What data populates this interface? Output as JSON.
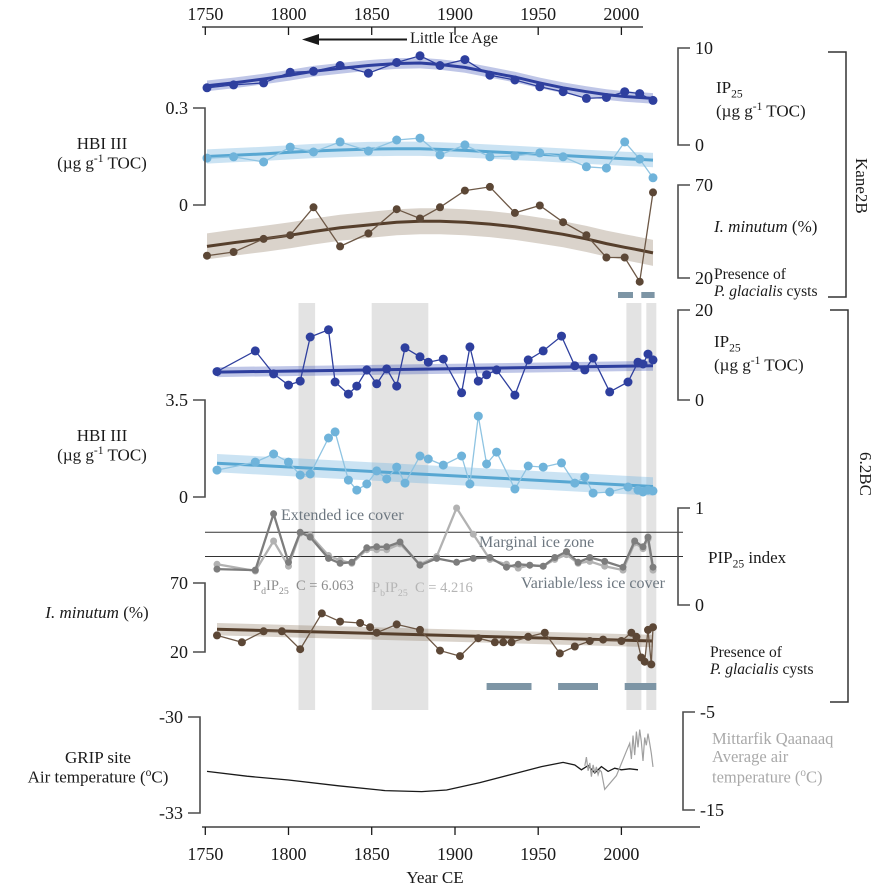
{
  "site_labels": {
    "kane2b": "Kane2B",
    "bc62": "6.2BC"
  },
  "labels": {
    "hbi3": "HBI III",
    "unit_toc": {
      "pre": "(µg g",
      "sup": "-1",
      "post": " TOC)"
    },
    "ip25": {
      "base": "IP",
      "sub": "25"
    },
    "pip25": {
      "base": "PIP",
      "sub": "25",
      "rest": " index"
    },
    "iminutum": {
      "it": "I. minutum",
      "rest": " (%)"
    },
    "presence": {
      "line1": "Presence of",
      "it": "P. glacialis",
      "rest": " cysts"
    },
    "grip": {
      "line1": "GRIP site",
      "line2_pre": "Air temperature (",
      "sup": "o",
      "post": "C)"
    },
    "mittarfik": {
      "line1": "Mittarfik Qaanaaq",
      "line2": "Average air",
      "line3_pre": "temperature (",
      "sup": "o",
      "post": "C)"
    },
    "little_ice_age": "Little Ice Age",
    "year_ce": "Year CE",
    "zone_extended": "Extended ice cover",
    "zone_marginal": "Marginal ice zone",
    "zone_variable": "Variable/less ice cover",
    "pd_legend": {
      "p": "P",
      "sub1": "d",
      "ip": "IP",
      "sub2": "25",
      "c": "C = 6.063"
    },
    "pb_legend": {
      "p": "P",
      "sub1": "b",
      "ip": "IP",
      "sub2": "25",
      "c": "C = 4.216"
    }
  },
  "axes": {
    "k_ip25": {
      "max": "10",
      "min": "0"
    },
    "k_hbi": {
      "max": "0.3",
      "min": "0"
    },
    "k_imin": {
      "max": "70",
      "min": "20"
    },
    "b_ip25": {
      "max": "20",
      "min": "0"
    },
    "b_hbi": {
      "max": "3.5",
      "min": "0"
    },
    "pip": {
      "max": "1",
      "min": "0"
    },
    "b_imin": {
      "max": "70",
      "min": "20"
    },
    "grip": {
      "max": "-30",
      "min": "-33"
    },
    "mq": {
      "max": "-5",
      "min": "-15"
    }
  },
  "top_axis": {
    "ticks": [
      "1750",
      "1800",
      "1850",
      "1900",
      "1950",
      "2000"
    ]
  },
  "bottom_axis": {
    "ticks": [
      "1750",
      "1800",
      "1850",
      "1900",
      "1950",
      "2000"
    ]
  },
  "colors": {
    "dark_blue": "#2e3f9e",
    "dark_blue_band": "rgba(62,83,183,0.33)",
    "light_blue": "#6fb3da",
    "light_blue_trend": "#58a7d2",
    "light_blue_band": "rgba(125,185,225,0.40)",
    "brown": "#5c4736",
    "brown_trend": "#563f2c",
    "brown_band": "rgba(140,117,94,0.32)",
    "pd_gray": "#7d7d7d",
    "pb_gray": "#b2b2b2",
    "black_line": "#1a1a1a",
    "mq_gray": "#a0a0a0",
    "highlight_band": "#e3e3e3",
    "presence_bar": "#7d95a5"
  },
  "highlight_bands_years": [
    [
      1806,
      1816
    ],
    [
      1850,
      1884
    ],
    [
      2003,
      2012
    ],
    [
      2015,
      2021
    ]
  ],
  "presence_bars": {
    "kane2b": [
      [
        1998,
        2007
      ],
      [
        2012,
        2020
      ]
    ],
    "bc62": [
      [
        1919,
        1946
      ],
      [
        1962,
        1986
      ],
      [
        2002,
        2021
      ]
    ]
  },
  "chart_data": [
    {
      "id": "kane2b_ip25",
      "type": "line",
      "site": "Kane2B",
      "name": "IP25 (µg g-1 TOC)",
      "ylim": [
        0,
        10
      ],
      "axis_side": "right",
      "years": [
        1751,
        1767,
        1785,
        1801,
        1815,
        1831,
        1848,
        1865,
        1879,
        1891,
        1906,
        1921,
        1936,
        1951,
        1965,
        1979,
        1991,
        2002,
        2011,
        2019
      ],
      "values": [
        5.9,
        6.2,
        6.4,
        7.5,
        7.6,
        8.2,
        7.4,
        8.5,
        9.2,
        8.2,
        8.8,
        7.2,
        6.7,
        6.0,
        5.5,
        4.8,
        4.9,
        5.5,
        5.3,
        4.6
      ],
      "trend": {
        "years": [
          1751,
          1767,
          1785,
          1801,
          1815,
          1831,
          1848,
          1865,
          1879,
          1891,
          1906,
          1921,
          1936,
          1951,
          1965,
          1979,
          1991,
          2002,
          2011,
          2019
        ],
        "values": [
          6.1,
          6.4,
          6.8,
          7.2,
          7.6,
          7.9,
          8.2,
          8.4,
          8.45,
          8.3,
          8.0,
          7.5,
          7.0,
          6.4,
          5.9,
          5.5,
          5.2,
          5.0,
          4.9,
          4.8
        ]
      },
      "band_halfwidth": 0.55
    },
    {
      "id": "kane2b_hbi3",
      "type": "line",
      "site": "Kane2B",
      "name": "HBI III (µg g-1 TOC)",
      "ylim": [
        0,
        0.3
      ],
      "axis_side": "left",
      "years": [
        1751,
        1767,
        1785,
        1801,
        1815,
        1831,
        1848,
        1865,
        1879,
        1891,
        1906,
        1921,
        1936,
        1951,
        1965,
        1979,
        1991,
        2002,
        2011,
        2019
      ],
      "values": [
        0.145,
        0.149,
        0.133,
        0.179,
        0.164,
        0.195,
        0.167,
        0.201,
        0.207,
        0.155,
        0.186,
        0.149,
        0.152,
        0.161,
        0.149,
        0.118,
        0.114,
        0.195,
        0.142,
        0.084
      ],
      "trend": {
        "years": [
          1751,
          1767,
          1785,
          1801,
          1815,
          1831,
          1848,
          1865,
          1879,
          1891,
          1906,
          1921,
          1936,
          1951,
          1965,
          1979,
          1991,
          2002,
          2011,
          2019
        ],
        "values": [
          0.15,
          0.154,
          0.158,
          0.163,
          0.167,
          0.17,
          0.173,
          0.174,
          0.174,
          0.172,
          0.169,
          0.165,
          0.161,
          0.157,
          0.153,
          0.149,
          0.146,
          0.143,
          0.141,
          0.139
        ]
      },
      "band_halfwidth": 0.022
    },
    {
      "id": "kane2b_iminutum",
      "type": "line",
      "site": "Kane2B",
      "name": "I. minutum (%)",
      "ylim": [
        20,
        70
      ],
      "axis_side": "right",
      "years": [
        1751,
        1767,
        1785,
        1801,
        1815,
        1831,
        1848,
        1865,
        1879,
        1891,
        1906,
        1921,
        1936,
        1951,
        1965,
        1979,
        1991,
        2002,
        2011,
        2019
      ],
      "values": [
        32,
        34,
        41,
        43,
        58,
        37,
        44,
        57,
        52,
        58,
        67,
        69,
        55,
        59,
        50,
        43,
        31,
        31,
        18,
        66
      ],
      "trend": {
        "years": [
          1751,
          1767,
          1785,
          1801,
          1815,
          1831,
          1848,
          1865,
          1879,
          1891,
          1906,
          1921,
          1936,
          1951,
          1965,
          1979,
          1991,
          2002,
          2011,
          2019
        ],
        "values": [
          37,
          39,
          41,
          43,
          45,
          47,
          48.5,
          50,
          50.5,
          50.5,
          50,
          49,
          47.5,
          45.5,
          43.5,
          41,
          38.5,
          36.5,
          35,
          33.5
        ]
      },
      "band_halfwidth": 7
    },
    {
      "id": "bc62_ip25",
      "type": "line",
      "site": "6.2BC",
      "name": "IP25 (µg g-1 TOC)",
      "ylim": [
        0,
        20
      ],
      "axis_side": "right",
      "years": [
        1757,
        1780,
        1791,
        1800,
        1807,
        1813,
        1824,
        1828,
        1836,
        1841,
        1847,
        1853,
        1859,
        1865,
        1870,
        1879,
        1884,
        1893,
        1904,
        1909,
        1914,
        1919,
        1925,
        1936,
        1944,
        1953,
        1964,
        1972,
        1978,
        1983,
        1993,
        2004,
        2010,
        2013,
        2016,
        2019
      ],
      "values": [
        6.3,
        10.9,
        5.8,
        3.3,
        4.2,
        14.0,
        15.6,
        4.0,
        1.3,
        3.1,
        6.7,
        3.6,
        6.9,
        3.1,
        11.6,
        9.6,
        8.4,
        9.1,
        1.6,
        11.8,
        4.2,
        5.6,
        6.7,
        1.1,
        8.9,
        10.9,
        14.2,
        7.6,
        6.7,
        9.3,
        1.8,
        4.0,
        8.4,
        8.0,
        10.2,
        8.9
      ],
      "trend": {
        "years": [
          1757,
          2019
        ],
        "values": [
          6.2,
          7.6
        ]
      },
      "band_halfwidth": 1.1
    },
    {
      "id": "bc62_hbi3",
      "type": "line",
      "site": "6.2BC",
      "name": "HBI III (µg g-1 TOC)",
      "ylim": [
        0,
        3.5
      ],
      "axis_side": "left",
      "years": [
        1757,
        1780,
        1791,
        1800,
        1807,
        1813,
        1824,
        1828,
        1836,
        1841,
        1847,
        1853,
        1859,
        1865,
        1870,
        1879,
        1884,
        1893,
        1904,
        1909,
        1914,
        1919,
        1925,
        1936,
        1944,
        1953,
        1964,
        1972,
        1978,
        1983,
        1993,
        2004,
        2010,
        2013,
        2016,
        2019
      ],
      "values": [
        0.97,
        1.26,
        1.55,
        1.26,
        0.79,
        0.83,
        2.13,
        2.35,
        0.61,
        0.25,
        0.47,
        0.94,
        0.65,
        1.08,
        0.5,
        1.48,
        1.37,
        1.15,
        1.48,
        0.47,
        2.92,
        1.19,
        1.62,
        0.29,
        1.12,
        1.08,
        1.23,
        0.5,
        0.72,
        0.14,
        0.18,
        0.36,
        0.25,
        0.18,
        0.25,
        0.22
      ],
      "trend": {
        "years": [
          1757,
          2019
        ],
        "values": [
          1.22,
          0.38
        ]
      },
      "band_halfwidth": 0.33
    },
    {
      "id": "bc62_pip25",
      "type": "line",
      "site": "6.2BC",
      "name": "PIP25 index",
      "ylim": [
        0,
        1
      ],
      "axis_side": "right",
      "thresholds": [
        0.75,
        0.5
      ],
      "zones": [
        "Extended ice cover",
        "Marginal ice zone",
        "Variable/less ice cover"
      ],
      "series": [
        {
          "name": "PdIP25",
          "C": 6.063,
          "years": [
            1757,
            1780,
            1791,
            1800,
            1807,
            1813,
            1824,
            1831,
            1838,
            1847,
            1853,
            1859,
            1867,
            1879,
            1889,
            1901,
            1911,
            1921,
            1931,
            1938,
            1945,
            1953,
            1960,
            1967,
            1974,
            1981,
            1990,
            2001,
            2008,
            2013,
            2016,
            2019
          ],
          "values": [
            0.37,
            0.36,
            0.94,
            0.44,
            0.75,
            0.7,
            0.48,
            0.43,
            0.44,
            0.59,
            0.6,
            0.6,
            0.65,
            0.41,
            0.48,
            0.44,
            0.48,
            0.49,
            0.39,
            0.42,
            0.41,
            0.4,
            0.49,
            0.55,
            0.44,
            0.49,
            0.45,
            0.39,
            0.66,
            0.6,
            0.7,
            0.39
          ]
        },
        {
          "name": "PbIP25",
          "C": 4.216,
          "years": [
            1757,
            1780,
            1791,
            1800,
            1807,
            1813,
            1824,
            1831,
            1838,
            1847,
            1853,
            1859,
            1867,
            1879,
            1889,
            1901,
            1911,
            1921,
            1931,
            1938,
            1945,
            1953,
            1960,
            1967,
            1974,
            1981,
            1990,
            2001,
            2008,
            2013,
            2016,
            2019
          ],
          "values": [
            0.42,
            0.35,
            0.66,
            0.4,
            0.74,
            0.72,
            0.51,
            0.46,
            0.43,
            0.57,
            0.57,
            0.57,
            0.63,
            0.42,
            0.5,
            1.0,
            0.73,
            0.47,
            0.42,
            0.38,
            0.41,
            0.4,
            0.47,
            0.52,
            0.43,
            0.45,
            0.4,
            0.36,
            0.64,
            0.58,
            0.68,
            0.36
          ]
        }
      ]
    },
    {
      "id": "bc62_iminutum",
      "type": "line",
      "site": "6.2BC",
      "name": "I. minutum (%)",
      "ylim": [
        20,
        70
      ],
      "axis_side": "left",
      "years": [
        1757,
        1772,
        1785,
        1796,
        1807,
        1820,
        1831,
        1843,
        1849,
        1853,
        1865,
        1879,
        1891,
        1903,
        1914,
        1924,
        1929,
        1934,
        1944,
        1954,
        1963,
        1972,
        1981,
        1989,
        2000,
        2006,
        2009,
        2012,
        2014,
        2016,
        2018,
        2019
      ],
      "values": [
        32,
        27,
        35,
        35,
        22,
        48,
        42,
        41,
        38,
        34,
        40,
        36,
        21,
        17,
        30,
        27,
        27,
        27,
        31,
        34,
        19,
        24,
        28,
        29,
        28,
        34,
        31,
        16,
        13,
        36,
        11,
        38
      ],
      "trend": {
        "years": [
          1757,
          2019
        ],
        "values": [
          36.5,
          28
        ]
      },
      "band_halfwidth": 4.5
    },
    {
      "id": "temperature",
      "type": "line",
      "series": [
        {
          "name": "GRIP site air temperature",
          "ylim": [
            -33,
            -30
          ],
          "points": [
            [
              1751,
              -31.7
            ],
            [
              1775,
              -31.85
            ],
            [
              1800,
              -31.97
            ],
            [
              1830,
              -32.15
            ],
            [
              1858,
              -32.3
            ],
            [
              1880,
              -32.33
            ],
            [
              1895,
              -32.28
            ],
            [
              1915,
              -32.05
            ],
            [
              1935,
              -31.78
            ],
            [
              1952,
              -31.55
            ],
            [
              1965,
              -31.42
            ],
            [
              1972,
              -31.5
            ],
            [
              1976,
              -31.65
            ],
            [
              1980,
              -31.52
            ],
            [
              1984,
              -31.75
            ],
            [
              1988,
              -31.55
            ],
            [
              1992,
              -31.7
            ],
            [
              1996,
              -31.6
            ],
            [
              2000,
              -31.65
            ],
            [
              2005,
              -31.62
            ],
            [
              2010,
              -31.65
            ]
          ]
        },
        {
          "name": "Mittarfik Qaanaaq average air temperature",
          "ylim": [
            -15,
            -5
          ],
          "points": [
            [
              1978,
              -10.5
            ],
            [
              1979,
              -9.6
            ],
            [
              1980,
              -11.0
            ],
            [
              1981,
              -10.2
            ],
            [
              1982,
              -11.6
            ],
            [
              1983,
              -10.4
            ],
            [
              1984,
              -11.2
            ],
            [
              1985,
              -10.6
            ],
            [
              1986,
              -11.4
            ],
            [
              1987,
              -10.9
            ],
            [
              1988,
              -11.1
            ],
            [
              1990,
              -12.9
            ],
            [
              1997,
              -11.5
            ],
            [
              2003,
              -9.0
            ],
            [
              2005,
              -8.2
            ],
            [
              2006,
              -9.8
            ],
            [
              2007,
              -7.4
            ],
            [
              2008,
              -9.4
            ],
            [
              2009,
              -7.0
            ],
            [
              2010,
              -8.6
            ],
            [
              2011,
              -6.8
            ],
            [
              2012,
              -8.0
            ],
            [
              2013,
              -10.0
            ],
            [
              2014,
              -7.6
            ],
            [
              2015,
              -8.4
            ],
            [
              2016,
              -7.2
            ],
            [
              2017,
              -8.2
            ],
            [
              2018,
              -9.2
            ],
            [
              2019,
              -10.6
            ]
          ]
        }
      ]
    }
  ]
}
